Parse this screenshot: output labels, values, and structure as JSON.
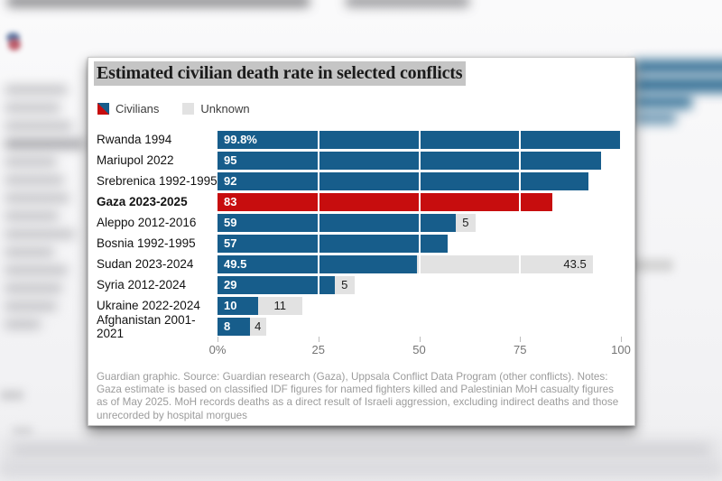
{
  "overlay": {
    "title": "Estimated civilian death rate in selected conflicts"
  },
  "legend": {
    "civilians_label": "Civilians",
    "unknown_label": "Unknown"
  },
  "colors": {
    "civilians_blue": "#175d8b",
    "gaza_red": "#c70d0e",
    "unknown_gray": "#e2e2e2",
    "title_highlight": "#c5c5c5"
  },
  "chart_data": {
    "type": "bar",
    "orientation": "horizontal",
    "title": "Estimated civilian death rate in selected conflicts",
    "xlabel": "",
    "ylabel": "",
    "xlim": [
      0,
      100
    ],
    "grid": "white vertical lines at 25/50/75 over bars",
    "legend_position": "top-left",
    "x_ticks": [
      {
        "value": 0,
        "label": "0%"
      },
      {
        "value": 25,
        "label": "25"
      },
      {
        "value": 50,
        "label": "50"
      },
      {
        "value": 75,
        "label": "75"
      },
      {
        "value": 100,
        "label": "100"
      }
    ],
    "series_names": [
      "Civilians",
      "Unknown"
    ],
    "rows": [
      {
        "label": "Rwanda 1994",
        "civilians": 99.8,
        "civilians_label": "99.8%",
        "unknown": null,
        "unknown_label": "",
        "highlight": false,
        "unknown_align": "center"
      },
      {
        "label": "Mariupol 2022",
        "civilians": 95,
        "civilians_label": "95",
        "unknown": null,
        "unknown_label": "",
        "highlight": false,
        "unknown_align": "center"
      },
      {
        "label": "Srebrenica 1992-1995",
        "civilians": 92,
        "civilians_label": "92",
        "unknown": null,
        "unknown_label": "",
        "highlight": false,
        "unknown_align": "center"
      },
      {
        "label": "Gaza 2023-2025",
        "civilians": 83,
        "civilians_label": "83",
        "unknown": null,
        "unknown_label": "",
        "highlight": true,
        "unknown_align": "center"
      },
      {
        "label": "Aleppo 2012-2016",
        "civilians": 59,
        "civilians_label": "59",
        "unknown": 5,
        "unknown_label": "5",
        "highlight": false,
        "unknown_align": "center"
      },
      {
        "label": "Bosnia 1992-1995",
        "civilians": 57,
        "civilians_label": "57",
        "unknown": null,
        "unknown_label": "",
        "highlight": false,
        "unknown_align": "center"
      },
      {
        "label": "Sudan 2023-2024",
        "civilians": 49.5,
        "civilians_label": "49.5",
        "unknown": 43.5,
        "unknown_label": "43.5",
        "highlight": false,
        "unknown_align": "right"
      },
      {
        "label": "Syria 2012-2024",
        "civilians": 29,
        "civilians_label": "29",
        "unknown": 5,
        "unknown_label": "5",
        "highlight": false,
        "unknown_align": "center"
      },
      {
        "label": "Ukraine 2022-2024",
        "civilians": 10,
        "civilians_label": "10",
        "unknown": 11,
        "unknown_label": "11",
        "highlight": false,
        "unknown_align": "center"
      },
      {
        "label": "Afghanistan 2001-2021",
        "civilians": 8,
        "civilians_label": "8",
        "unknown": 4,
        "unknown_label": "4",
        "highlight": false,
        "unknown_align": "center"
      }
    ]
  },
  "footer": {
    "note": "Guardian graphic. Source: Guardian research (Gaza), Uppsala Conflict Data Program (other conflicts). Notes: Gaza estimate is based on classified IDF figures for named fighters killed and Palestinian MoH casualty figures as of May 2025. MoH records deaths as a direct result of Israeli aggression, excluding indirect deaths and those unrecorded by hospital morgues"
  }
}
